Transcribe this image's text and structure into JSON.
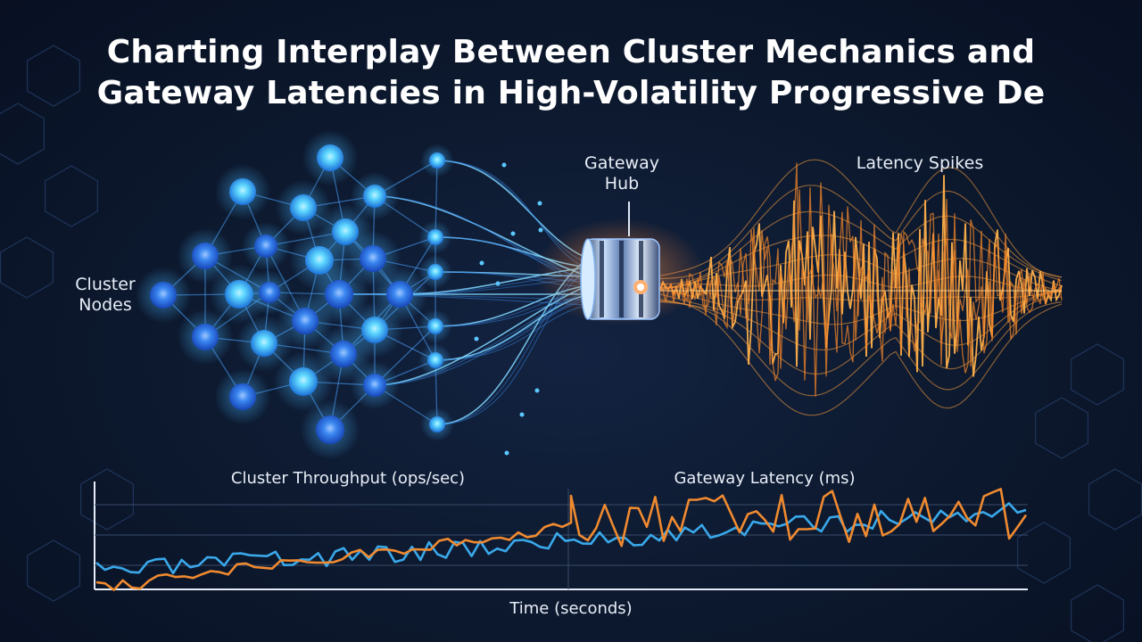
{
  "title": {
    "line1": "Charting Interplay Between Cluster Mechanics and",
    "line2": "Gateway Latencies in High-Volatility Progressive De"
  },
  "diagram": {
    "cluster_label": "Cluster\nNodes",
    "gateway_label": "Gateway\nHub",
    "latency_label": "Latency Spikes"
  },
  "chart": {
    "left_label": "Cluster Throughput (ops/sec)",
    "right_label": "Gateway Latency (ms)",
    "x_label": "Time (seconds)",
    "series": [
      {
        "key": "throughput",
        "color": "#3aa8ea"
      },
      {
        "key": "latency",
        "color": "#f08a30"
      }
    ]
  },
  "colors": {
    "background": "#0b1426",
    "node": "#3aa3f5",
    "node_glow": "#5fd8ff",
    "wave": "#f59432",
    "hub_accent": "#ff7a3a"
  }
}
